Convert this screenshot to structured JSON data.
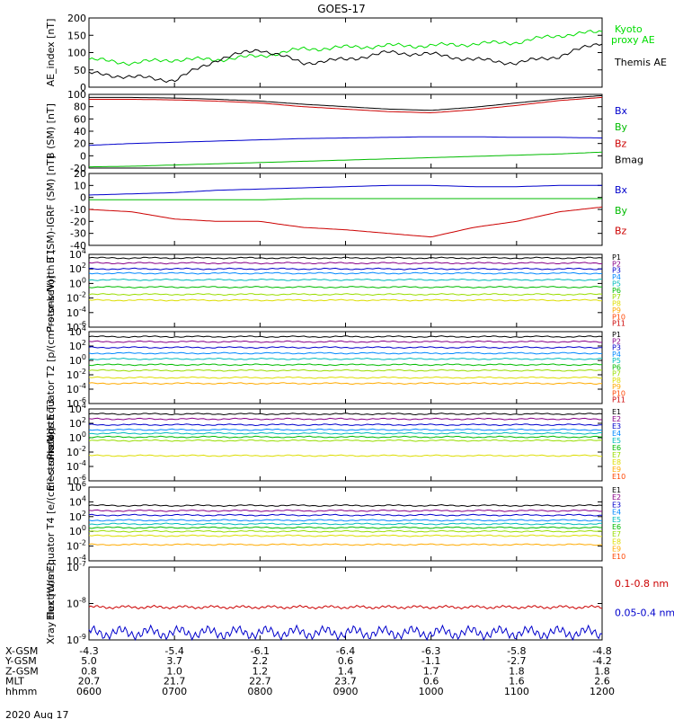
{
  "title": "GOES-17",
  "date_label": "2020 Aug 17",
  "footer": {
    "rows": [
      {
        "label": "X-GSM",
        "values": [
          "-4.3",
          "-5.4",
          "-6.1",
          "-6.4",
          "-6.3",
          "-5.8",
          "-4.8"
        ]
      },
      {
        "label": "Y-GSM",
        "values": [
          "5.0",
          "3.7",
          "2.2",
          "0.6",
          "-1.1",
          "-2.7",
          "-4.2"
        ]
      },
      {
        "label": "Z-GSM",
        "values": [
          "0.8",
          "1.0",
          "1.2",
          "1.4",
          "1.7",
          "1.8",
          "1.8"
        ]
      },
      {
        "label": "MLT",
        "values": [
          "20.7",
          "21.7",
          "22.7",
          "23.7",
          "0.6",
          "1.6",
          "2.6"
        ]
      },
      {
        "label": "hhmm",
        "values": [
          "0600",
          "0700",
          "0800",
          "0900",
          "1000",
          "1100",
          "1200"
        ]
      }
    ]
  },
  "chart_data": [
    {
      "type": "line",
      "ylabel": "AE_index [nT]",
      "ylim": [
        0,
        200
      ],
      "yticks": [
        "0",
        "50",
        "100",
        "150",
        "200"
      ],
      "x": [
        "0600",
        "0630",
        "0700",
        "0730",
        "0800",
        "0830",
        "0900",
        "0930",
        "1000",
        "1030",
        "1100",
        "1130",
        "1200"
      ],
      "series": [
        {
          "name": "Kyoto proxy AE",
          "color": "#00dd00",
          "values": [
            80,
            70,
            80,
            80,
            90,
            110,
            115,
            120,
            120,
            125,
            130,
            150,
            160
          ]
        },
        {
          "name": "Themis AE",
          "color": "#000000",
          "values": [
            40,
            30,
            20,
            80,
            110,
            70,
            80,
            100,
            95,
            80,
            70,
            90,
            130
          ]
        }
      ]
    },
    {
      "type": "line",
      "ylabel": "B (SM) [nT]",
      "ylim": [
        -20,
        100
      ],
      "yticks": [
        "-20",
        "0",
        "20",
        "40",
        "60",
        "80",
        "100"
      ],
      "x": [
        "0600",
        "0630",
        "0700",
        "0730",
        "0800",
        "0830",
        "0900",
        "0930",
        "1000",
        "1030",
        "1100",
        "1130",
        "1200"
      ],
      "series": [
        {
          "name": "Bx",
          "color": "#0000cc",
          "values": [
            17,
            20,
            22,
            24,
            26,
            28,
            29,
            30,
            31,
            31,
            30,
            30,
            29
          ]
        },
        {
          "name": "By",
          "color": "#00bb00",
          "values": [
            -18,
            -17,
            -15,
            -13,
            -11,
            -9,
            -7,
            -5,
            -3,
            -1,
            1,
            3,
            6
          ]
        },
        {
          "name": "Bz",
          "color": "#cc0000",
          "values": [
            92,
            92,
            91,
            89,
            86,
            80,
            76,
            72,
            70,
            75,
            82,
            90,
            95
          ]
        },
        {
          "name": "Bmag",
          "color": "#000000",
          "values": [
            95,
            95,
            94,
            92,
            89,
            84,
            80,
            76,
            74,
            79,
            86,
            93,
            98
          ]
        }
      ]
    },
    {
      "type": "line",
      "ylabel": "B (SM)-IGRF (SM) [nT]",
      "ylim": [
        -40,
        20
      ],
      "yticks": [
        "-40",
        "-30",
        "-20",
        "-10",
        "0",
        "10",
        "20"
      ],
      "x": [
        "0600",
        "0630",
        "0700",
        "0730",
        "0800",
        "0830",
        "0900",
        "0930",
        "1000",
        "1030",
        "1100",
        "1130",
        "1200"
      ],
      "series": [
        {
          "name": "Bx",
          "color": "#0000cc",
          "values": [
            2,
            3,
            4,
            6,
            7,
            8,
            9,
            10,
            10,
            9,
            9,
            10,
            10
          ]
        },
        {
          "name": "By",
          "color": "#00bb00",
          "values": [
            -2,
            -2,
            -2,
            -2,
            -2,
            -1,
            -1,
            -1,
            -1,
            -1,
            -1,
            -1,
            -1
          ]
        },
        {
          "name": "Bz",
          "color": "#cc0000",
          "values": [
            -10,
            -12,
            -18,
            -20,
            -20,
            -25,
            -27,
            -30,
            -33,
            -25,
            -20,
            -12,
            -8
          ]
        }
      ]
    },
    {
      "type": "line",
      "ylabel": "Protons North T1",
      "yscale": "log",
      "ylim_exp": [
        -6,
        4
      ],
      "yticks": [
        "10^4",
        "10^2",
        "10^0",
        "10^-2",
        "10^-4",
        "10^-6"
      ],
      "legend": [
        "P1",
        "P2",
        "P3",
        "P4",
        "P5",
        "P6",
        "P7",
        "P8",
        "P9",
        "P10",
        "P11"
      ],
      "series_colors": [
        "#000000",
        "#880088",
        "#0000cc",
        "#0088ff",
        "#00bbbb",
        "#00bb00",
        "#99dd00",
        "#dddd00",
        "#ffaa00",
        "#ff4400",
        "#cc0000"
      ],
      "series_log_levels": [
        3.5,
        2.8,
        2.0,
        1.4,
        0.5,
        -0.5,
        -1.5,
        -2.3
      ]
    },
    {
      "type": "line",
      "ylabel": "Protons Equator T2 [p/(cm²-s-sr-keV)]",
      "yscale": "log",
      "ylim_exp": [
        -6,
        4
      ],
      "yticks": [
        "10^4",
        "10^2",
        "10^0",
        "10^-2",
        "10^-4",
        "10^-6"
      ],
      "legend": [
        "P1",
        "P2",
        "P3",
        "P4",
        "P5",
        "P6",
        "P7",
        "P8",
        "P9",
        "P10",
        "P11"
      ],
      "series_colors": [
        "#000000",
        "#880088",
        "#0000cc",
        "#0088ff",
        "#00bbbb",
        "#00bb00",
        "#99dd00",
        "#dddd00",
        "#ffaa00",
        "#ff4400",
        "#cc0000"
      ],
      "series_log_levels": [
        3.3,
        2.6,
        1.8,
        1.0,
        0.2,
        -0.6,
        -1.4,
        -2.4,
        -3.2
      ]
    },
    {
      "type": "line",
      "ylabel": "Electrons North T3",
      "yscale": "log",
      "ylim_exp": [
        -6,
        4
      ],
      "yticks": [
        "10^4",
        "10^2",
        "10^0",
        "10^-2",
        "10^-4",
        "10^-6"
      ],
      "legend": [
        "E1",
        "E2",
        "E3",
        "E4",
        "E5",
        "E6",
        "E7",
        "E8",
        "E9",
        "E10"
      ],
      "series_colors": [
        "#000000",
        "#880088",
        "#0000cc",
        "#0088ff",
        "#00bbbb",
        "#00bb00",
        "#99dd00",
        "#dddd00",
        "#ffaa00",
        "#ff4400",
        "#cc0000"
      ],
      "series_log_levels": [
        3.3,
        2.6,
        1.8,
        1.1,
        0.6,
        0.1,
        -0.4,
        -2.5
      ]
    },
    {
      "type": "line",
      "ylabel": "Electrons Equator T4 [e/(cm²-s-sr-keV)]",
      "yscale": "log",
      "ylim_exp": [
        -4,
        6
      ],
      "yticks": [
        "10^6",
        "10^4",
        "10^2",
        "10^0",
        "10^-2",
        "10^-4"
      ],
      "legend": [
        "E1",
        "E2",
        "E3",
        "E4",
        "E5",
        "E6",
        "E7",
        "E8",
        "E9",
        "E10"
      ],
      "series_colors": [
        "#000000",
        "#880088",
        "#0000cc",
        "#0088ff",
        "#00bbbb",
        "#00bb00",
        "#99dd00",
        "#dddd00",
        "#ffaa00",
        "#ff4400",
        "#cc0000"
      ],
      "series_log_levels": [
        3.5,
        2.8,
        2.2,
        1.5,
        1.0,
        0.5,
        0,
        -0.6,
        -1.8
      ]
    },
    {
      "type": "line",
      "ylabel": "Xray flux [W/m²]",
      "yscale": "log",
      "ylim_exp": [
        -9,
        -7
      ],
      "yticks": [
        "10^-7",
        "10^-8",
        "10^-9"
      ],
      "series": [
        {
          "name": "0.1-0.8 nm",
          "color": "#cc0000",
          "log_level": -8.1
        },
        {
          "name": "0.05-0.4 nm",
          "color": "#0000cc",
          "log_level": -8.8
        }
      ]
    }
  ]
}
